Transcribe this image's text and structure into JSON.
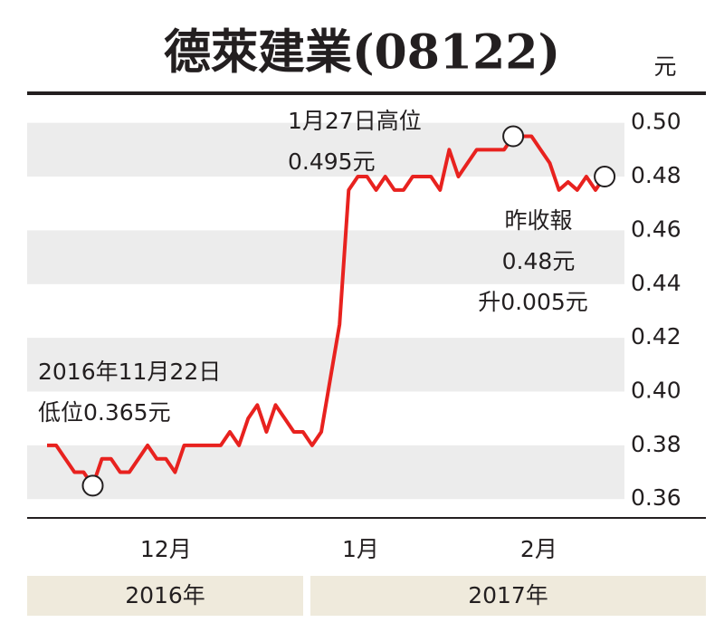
{
  "chart_data": {
    "type": "line",
    "title": "德萊建業(08122)",
    "unit": "元",
    "series": [
      {
        "color": "#e8221f",
        "values": [
          0.38,
          0.38,
          0.375,
          0.37,
          0.37,
          0.365,
          0.375,
          0.375,
          0.37,
          0.37,
          0.375,
          0.38,
          0.375,
          0.375,
          0.37,
          0.38,
          0.38,
          0.38,
          0.38,
          0.38,
          0.385,
          0.38,
          0.39,
          0.395,
          0.385,
          0.395,
          0.39,
          0.385,
          0.385,
          0.38,
          0.385,
          0.405,
          0.425,
          0.475,
          0.48,
          0.48,
          0.475,
          0.48,
          0.475,
          0.475,
          0.48,
          0.48,
          0.48,
          0.475,
          0.49,
          0.48,
          0.485,
          0.49,
          0.49,
          0.49,
          0.49,
          0.495,
          0.495,
          0.495,
          0.49,
          0.485,
          0.475,
          0.478,
          0.475,
          0.48,
          0.475,
          0.48
        ]
      }
    ],
    "markers": [
      5,
      51,
      61
    ],
    "ylim": [
      0.353,
      0.511
    ],
    "yticks": [
      {
        "value": 0.5,
        "label": "0.50"
      },
      0.48,
      0.46,
      0.44,
      0.42,
      {
        "value": 0.4,
        "label": "0.40"
      },
      0.38,
      0.36
    ],
    "xticks": [
      {
        "value": 13,
        "label": "12月"
      },
      {
        "value": 34.3,
        "label": "1月"
      },
      {
        "value": 53.8,
        "label": "2月"
      }
    ],
    "years": [
      "2016年",
      "2017年"
    ],
    "annotations": [
      {
        "lines": [
          "1月27日高位",
          "0.495元"
        ]
      },
      {
        "lines": [
          "2016年11月22日",
          "低位0.365元"
        ]
      },
      {
        "lines": [
          "昨收報",
          "0.48元",
          "升0.005元"
        ]
      }
    ]
  }
}
